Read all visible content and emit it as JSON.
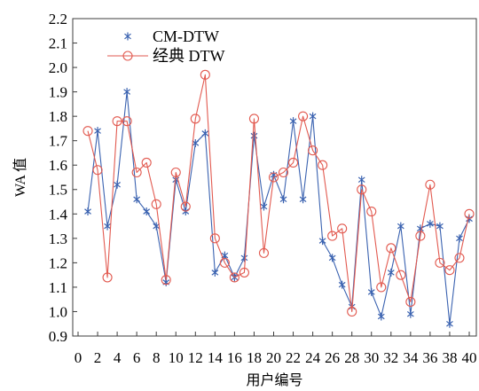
{
  "chart_data": {
    "type": "line",
    "xlabel": "用户编号",
    "ylabel": "WA 值",
    "xlim": [
      0,
      40
    ],
    "ylim": [
      0.9,
      2.2
    ],
    "xtick_labels": [
      "0",
      "2",
      "4",
      "6",
      "8",
      "10",
      "12",
      "14",
      "16",
      "18",
      "20",
      "22",
      "24",
      "26",
      "28",
      "30",
      "32",
      "34",
      "36",
      "38",
      "40"
    ],
    "ytick_labels": [
      "0.9",
      "1.0",
      "1.1",
      "1.2",
      "1.3",
      "1.4",
      "1.5",
      "1.6",
      "1.7",
      "1.8",
      "1.9",
      "2.0",
      "2.1",
      "2.2"
    ],
    "grid": false,
    "legend": {
      "position": "top-left"
    },
    "x": [
      1,
      2,
      3,
      4,
      5,
      6,
      7,
      8,
      9,
      10,
      11,
      12,
      13,
      14,
      15,
      16,
      17,
      18,
      19,
      20,
      21,
      22,
      23,
      24,
      25,
      26,
      27,
      28,
      29,
      30,
      31,
      32,
      33,
      34,
      35,
      36,
      37,
      38,
      39,
      40
    ],
    "series": [
      {
        "name": "CM-DTW",
        "color": "#3a62b0",
        "marker": "asterisk",
        "values": [
          1.41,
          1.74,
          1.35,
          1.52,
          1.9,
          1.46,
          1.41,
          1.35,
          1.12,
          1.54,
          1.41,
          1.69,
          1.73,
          1.16,
          1.23,
          1.14,
          1.22,
          1.72,
          1.43,
          1.56,
          1.46,
          1.78,
          1.46,
          1.8,
          1.29,
          1.22,
          1.11,
          1.02,
          1.54,
          1.08,
          0.98,
          1.16,
          1.35,
          0.99,
          1.34,
          1.36,
          1.35,
          0.95,
          1.3,
          1.38
        ]
      },
      {
        "name": "经典 DTW",
        "color": "#e25a50",
        "marker": "circle",
        "values": [
          1.74,
          1.58,
          1.14,
          1.78,
          1.78,
          1.57,
          1.61,
          1.44,
          1.13,
          1.57,
          1.43,
          1.79,
          1.97,
          1.3,
          1.2,
          1.14,
          1.16,
          1.79,
          1.24,
          1.55,
          1.57,
          1.61,
          1.8,
          1.66,
          1.6,
          1.31,
          1.34,
          1.0,
          1.5,
          1.41,
          1.1,
          1.26,
          1.15,
          1.04,
          1.31,
          1.52,
          1.2,
          1.17,
          1.22,
          1.4
        ]
      }
    ]
  }
}
